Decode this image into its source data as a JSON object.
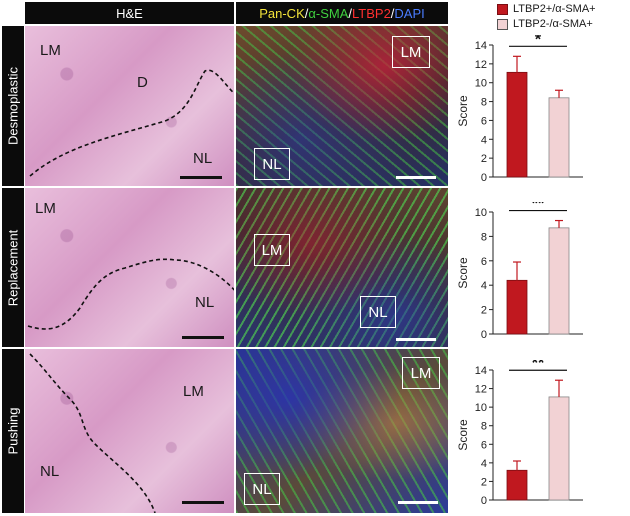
{
  "headers": {
    "he": "H&E",
    "if_parts": [
      {
        "text": "Pan-CK",
        "color": "#f2e23a"
      },
      {
        "text": "/",
        "color": "#ffffff"
      },
      {
        "text": "α-SMA",
        "color": "#3fd13f"
      },
      {
        "text": "/",
        "color": "#ffffff"
      },
      {
        "text": "LTBP2",
        "color": "#ff3030"
      },
      {
        "text": "/",
        "color": "#ffffff"
      },
      {
        "text": "DAPI",
        "color": "#4a7cff"
      }
    ]
  },
  "legend": [
    {
      "label": "LTBP2+/α-SMA+",
      "color": "#c0181f"
    },
    {
      "label": "LTBP2-/α-SMA+",
      "color": "#f2d2d4"
    }
  ],
  "rows": [
    {
      "name": "Desmoplastic",
      "he_labels": {
        "lm": "LM",
        "d": "D",
        "nl": "NL"
      },
      "if_labels": {
        "lm": "LM",
        "nl": "NL"
      },
      "significance": "*"
    },
    {
      "name": "Replacement",
      "he_labels": {
        "lm": "LM",
        "nl": "NL"
      },
      "if_labels": {
        "lm": "LM",
        "nl": "NL"
      },
      "significance": "**"
    },
    {
      "name": "Pushing",
      "he_labels": {
        "lm": "LM",
        "nl": "NL"
      },
      "if_labels": {
        "lm": "LM",
        "nl": "NL"
      },
      "significance": "**"
    }
  ],
  "chart_data": [
    {
      "type": "bar",
      "panel": "Desmoplastic",
      "ylabel": "Score",
      "ylim": [
        0,
        14
      ],
      "yticks": [
        0,
        2,
        4,
        6,
        8,
        10,
        12,
        14
      ],
      "series": [
        {
          "name": "LTBP2+/α-SMA+",
          "value": 11.1,
          "error": 1.7,
          "color": "#c0181f"
        },
        {
          "name": "LTBP2-/α-SMA+",
          "value": 8.4,
          "error": 0.8,
          "color": "#f2d2d4"
        }
      ],
      "significance": "*"
    },
    {
      "type": "bar",
      "panel": "Replacement",
      "ylabel": "Score",
      "ylim": [
        0,
        10
      ],
      "yticks": [
        0,
        2,
        4,
        6,
        8,
        10
      ],
      "series": [
        {
          "name": "LTBP2+/α-SMA+",
          "value": 4.4,
          "error": 1.5,
          "color": "#c0181f"
        },
        {
          "name": "LTBP2-/α-SMA+",
          "value": 8.7,
          "error": 0.6,
          "color": "#f2d2d4"
        }
      ],
      "significance": "**"
    },
    {
      "type": "bar",
      "panel": "Pushing",
      "ylabel": "Score",
      "ylim": [
        0,
        14
      ],
      "yticks": [
        0,
        2,
        4,
        6,
        8,
        10,
        12,
        14
      ],
      "series": [
        {
          "name": "LTBP2+/α-SMA+",
          "value": 3.2,
          "error": 1.0,
          "color": "#c0181f"
        },
        {
          "name": "LTBP2-/α-SMA+",
          "value": 11.1,
          "error": 1.8,
          "color": "#f2d2d4"
        }
      ],
      "significance": "**"
    }
  ]
}
